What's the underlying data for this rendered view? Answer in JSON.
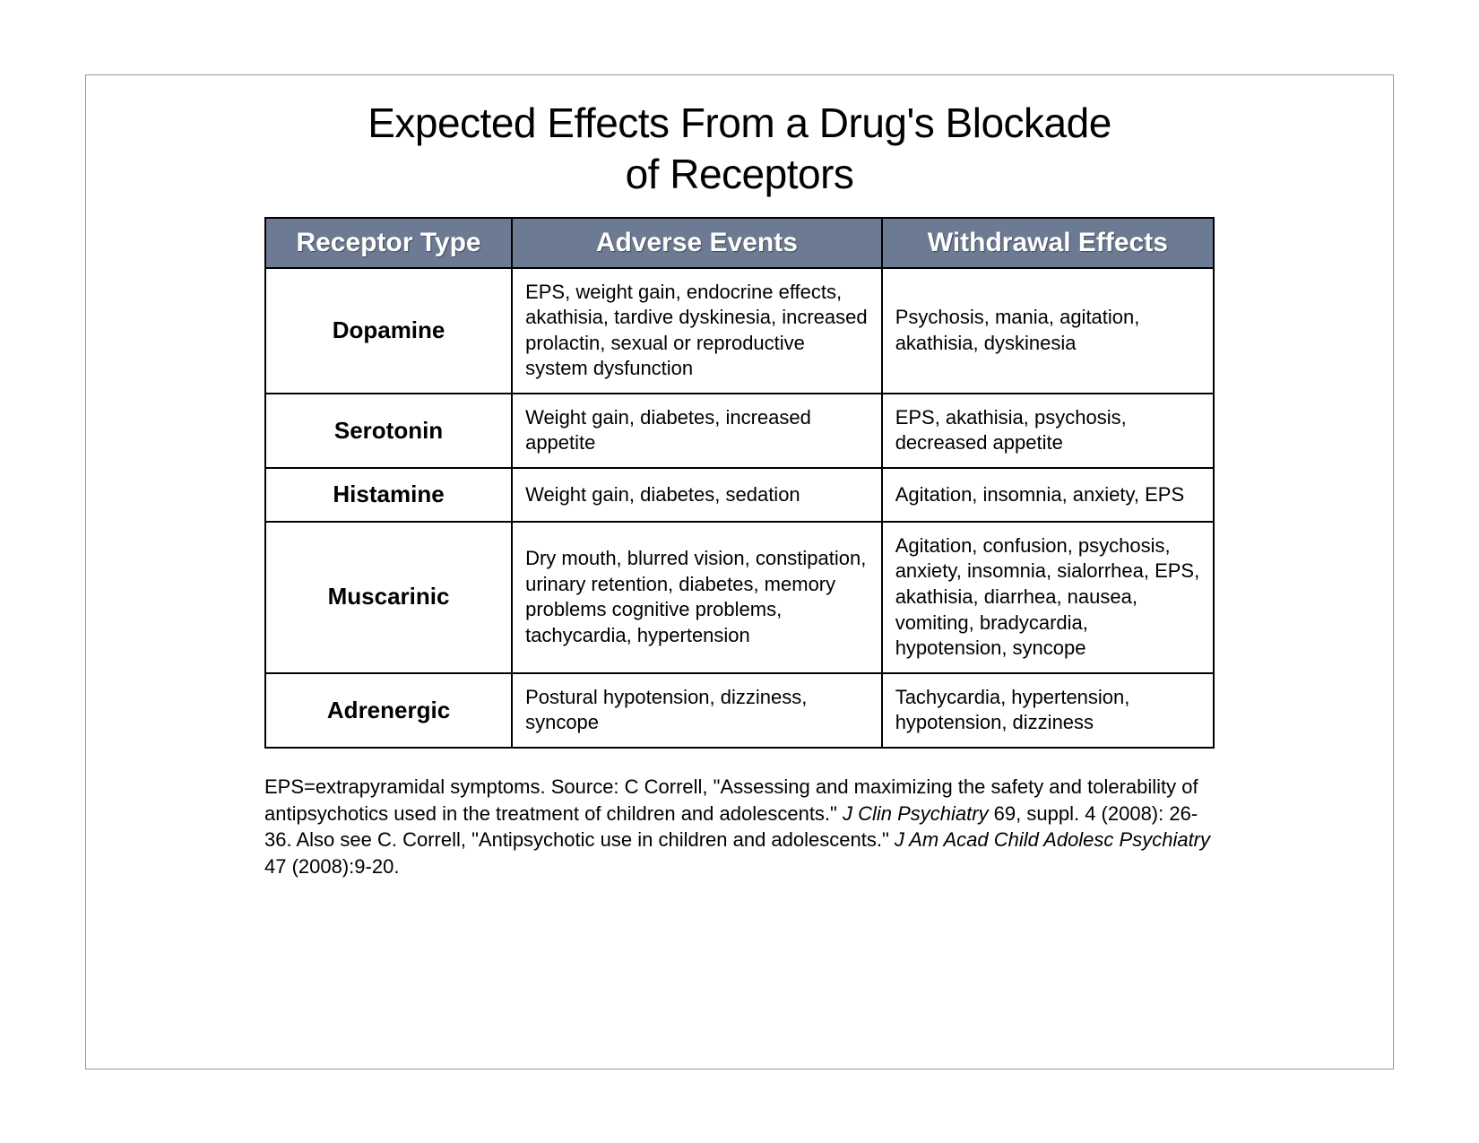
{
  "title_line1": "Expected Effects From a Drug's Blockade",
  "title_line2": "of Receptors",
  "table": {
    "columns": [
      "Receptor Type",
      "Adverse Events",
      "Withdrawal Effects"
    ],
    "header_bg": "#6c7a93",
    "header_fg": "#ffffff",
    "border_color": "#000000",
    "cell_bg": "#ffffff",
    "rows": [
      {
        "receptor": "Dopamine",
        "adverse": "EPS, weight gain, endocrine effects, akathisia, tardive dyskinesia, increased prolactin, sexual or reproductive system dysfunction",
        "withdrawal": "Psychosis, mania, agitation, akathisia, dyskinesia"
      },
      {
        "receptor": "Serotonin",
        "adverse": "Weight gain, diabetes, increased appetite",
        "withdrawal": "EPS, akathisia, psychosis, decreased appetite"
      },
      {
        "receptor": "Histamine",
        "adverse": "Weight gain, diabetes, sedation",
        "withdrawal": "Agitation, insomnia, anxiety, EPS"
      },
      {
        "receptor": "Muscarinic",
        "adverse": "Dry mouth, blurred vision, constipation, urinary retention, diabetes, memory problems cognitive problems, tachycardia, hypertension",
        "withdrawal": "Agitation, confusion, psychosis, anxiety, insomnia, sialorrhea, EPS, akathisia, diarrhea, nausea, vomiting, bradycardia, hypotension, syncope"
      },
      {
        "receptor": "Adrenergic",
        "adverse": "Postural hypotension, dizziness, syncope",
        "withdrawal": "Tachycardia, hypertension, hypotension, dizziness"
      }
    ]
  },
  "footnote": {
    "seg1": "EPS=extrapyramidal symptoms. Source: C Correll,  \"Assessing and maximizing the safety and tolerability of antipsychotics used in the treatment of children and adolescents.\" ",
    "ital1": "J Clin Psychiatry",
    "seg2": " 69, suppl. 4 (2008): 26-36. Also see C. Correll, \"Antipsychotic use in children and adolescents.\" ",
    "ital2": "J Am Acad Child Adolesc Psychiatry",
    "seg3": " 47 (2008):9-20."
  }
}
